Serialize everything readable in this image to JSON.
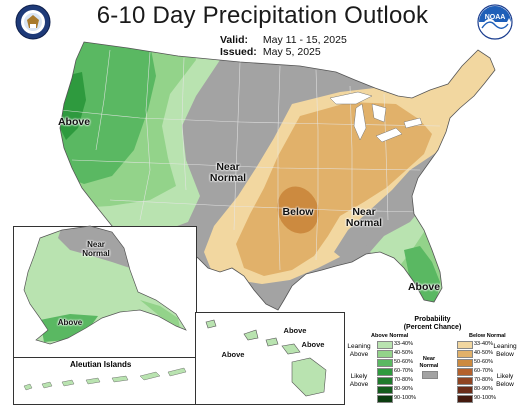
{
  "header": {
    "title": "6-10 Day Precipitation Outlook",
    "valid_label": "Valid:",
    "valid_value": "May 11 - 15, 2025",
    "issued_label": "Issued:",
    "issued_value": "May 5, 2025"
  },
  "logos": {
    "left": "commerce-seal-icon",
    "right": "noaa-logo-icon"
  },
  "map_labels": {
    "west_above": "Above",
    "central_near_normal_1": "Near",
    "central_near_normal_2": "Normal",
    "plains_below": "Below",
    "southeast_near_normal_1": "Near",
    "southeast_near_normal_2": "Normal",
    "florida_above": "Above",
    "alaska_near_normal_1": "Near",
    "alaska_near_normal_2": "Normal",
    "alaska_above": "Above",
    "hawaii_above_1": "Above",
    "hawaii_above_2": "Above",
    "hawaii_above_3": "Above",
    "aleutian_islands": "Aleutian Islands"
  },
  "legend": {
    "title_1": "Probability",
    "title_2": "(Percent Chance)",
    "above_normal_header": "Above Normal",
    "below_normal_header": "Below Normal",
    "near_normal_1": "Near",
    "near_normal_2": "Normal",
    "leaning_above_1": "Leaning",
    "leaning_above_2": "Above",
    "likely_above_1": "Likely",
    "likely_above_2": "Above",
    "leaning_below_1": "Leaning",
    "leaning_below_2": "Below",
    "likely_below_1": "Likely",
    "likely_below_2": "Below",
    "above_bins": [
      {
        "label": "33-40%",
        "color": "#b9e3b0"
      },
      {
        "label": "40-50%",
        "color": "#93d38a"
      },
      {
        "label": "50-60%",
        "color": "#5ab862"
      },
      {
        "label": "60-70%",
        "color": "#2e9a3e"
      },
      {
        "label": "70-80%",
        "color": "#1f7a2c"
      },
      {
        "label": "80-90%",
        "color": "#135b1c"
      },
      {
        "label": "90-100%",
        "color": "#0b3c10"
      }
    ],
    "below_bins": [
      {
        "label": "33-40%",
        "color": "#f2d7a0"
      },
      {
        "label": "40-50%",
        "color": "#e1b16a"
      },
      {
        "label": "50-60%",
        "color": "#cc8a3f"
      },
      {
        "label": "60-70%",
        "color": "#b4612c"
      },
      {
        "label": "70-80%",
        "color": "#8f4422"
      },
      {
        "label": "80-90%",
        "color": "#6b2c18"
      },
      {
        "label": "90-100%",
        "color": "#451a0e"
      }
    ],
    "near_normal_color": "#a3a3a3"
  }
}
